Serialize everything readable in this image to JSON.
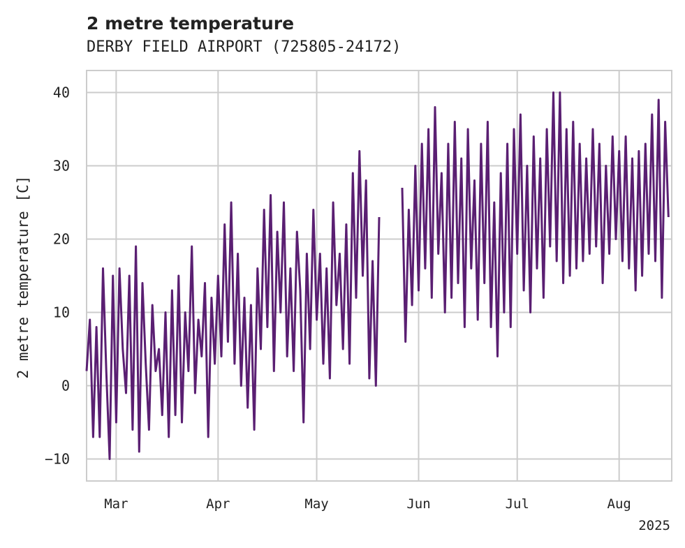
{
  "chart_data": {
    "type": "line",
    "title": "2 metre temperature",
    "subtitle": "DERBY FIELD AIRPORT (725805-24172)",
    "ylabel": "2 metre temperature [C]",
    "xlabel": "",
    "x_year_label": "2025",
    "ylim": [
      -13,
      43
    ],
    "yticks": [
      -10,
      0,
      10,
      20,
      30,
      40
    ],
    "xlim": [
      "2025-02-20",
      "2025-08-17"
    ],
    "xticks": [
      {
        "date": "2025-03-01",
        "label": "Mar"
      },
      {
        "date": "2025-04-01",
        "label": "Apr"
      },
      {
        "date": "2025-05-01",
        "label": "May"
      },
      {
        "date": "2025-06-01",
        "label": "Jun"
      },
      {
        "date": "2025-07-01",
        "label": "Jul"
      },
      {
        "date": "2025-08-01",
        "label": "Aug"
      }
    ],
    "grid": true,
    "line_color": "#5a1f72",
    "series": [
      {
        "name": "",
        "points": [
          [
            "2025-02-20",
            2
          ],
          [
            "2025-02-21",
            9
          ],
          [
            "2025-02-22",
            -7
          ],
          [
            "2025-02-23",
            8
          ],
          [
            "2025-02-24",
            -7
          ],
          [
            "2025-02-25",
            16
          ],
          [
            "2025-02-26",
            2
          ],
          [
            "2025-02-27",
            -10
          ],
          [
            "2025-02-28",
            15
          ],
          [
            "2025-03-01",
            -5
          ],
          [
            "2025-03-02",
            16
          ],
          [
            "2025-03-03",
            5
          ],
          [
            "2025-03-04",
            -1
          ],
          [
            "2025-03-05",
            15
          ],
          [
            "2025-03-06",
            -6
          ],
          [
            "2025-03-07",
            19
          ],
          [
            "2025-03-08",
            -9
          ],
          [
            "2025-03-09",
            14
          ],
          [
            "2025-03-10",
            3
          ],
          [
            "2025-03-11",
            -6
          ],
          [
            "2025-03-12",
            11
          ],
          [
            "2025-03-13",
            2
          ],
          [
            "2025-03-14",
            5
          ],
          [
            "2025-03-15",
            -4
          ],
          [
            "2025-03-16",
            10
          ],
          [
            "2025-03-17",
            -7
          ],
          [
            "2025-03-18",
            13
          ],
          [
            "2025-03-19",
            -4
          ],
          [
            "2025-03-20",
            15
          ],
          [
            "2025-03-21",
            -5
          ],
          [
            "2025-03-22",
            10
          ],
          [
            "2025-03-23",
            2
          ],
          [
            "2025-03-24",
            19
          ],
          [
            "2025-03-25",
            -1
          ],
          [
            "2025-03-26",
            9
          ],
          [
            "2025-03-27",
            4
          ],
          [
            "2025-03-28",
            14
          ],
          [
            "2025-03-29",
            -7
          ],
          [
            "2025-03-30",
            12
          ],
          [
            "2025-03-31",
            3
          ],
          [
            "2025-04-01",
            15
          ],
          [
            "2025-04-02",
            4
          ],
          [
            "2025-04-03",
            22
          ],
          [
            "2025-04-04",
            6
          ],
          [
            "2025-04-05",
            25
          ],
          [
            "2025-04-06",
            3
          ],
          [
            "2025-04-07",
            18
          ],
          [
            "2025-04-08",
            0
          ],
          [
            "2025-04-09",
            12
          ],
          [
            "2025-04-10",
            -3
          ],
          [
            "2025-04-11",
            11
          ],
          [
            "2025-04-12",
            -6
          ],
          [
            "2025-04-13",
            16
          ],
          [
            "2025-04-14",
            5
          ],
          [
            "2025-04-15",
            24
          ],
          [
            "2025-04-16",
            8
          ],
          [
            "2025-04-17",
            26
          ],
          [
            "2025-04-18",
            2
          ],
          [
            "2025-04-19",
            21
          ],
          [
            "2025-04-20",
            10
          ],
          [
            "2025-04-21",
            25
          ],
          [
            "2025-04-22",
            4
          ],
          [
            "2025-04-23",
            16
          ],
          [
            "2025-04-24",
            2
          ],
          [
            "2025-04-25",
            21
          ],
          [
            "2025-04-26",
            13
          ],
          [
            "2025-04-27",
            -5
          ],
          [
            "2025-04-28",
            18
          ],
          [
            "2025-04-29",
            5
          ],
          [
            "2025-04-30",
            24
          ],
          [
            "2025-05-01",
            9
          ],
          [
            "2025-05-02",
            18
          ],
          [
            "2025-05-03",
            3
          ],
          [
            "2025-05-04",
            16
          ],
          [
            "2025-05-05",
            1
          ],
          [
            "2025-05-06",
            25
          ],
          [
            "2025-05-07",
            11
          ],
          [
            "2025-05-08",
            18
          ],
          [
            "2025-05-09",
            5
          ],
          [
            "2025-05-10",
            22
          ],
          [
            "2025-05-11",
            3
          ],
          [
            "2025-05-12",
            29
          ],
          [
            "2025-05-13",
            12
          ],
          [
            "2025-05-14",
            32
          ],
          [
            "2025-05-15",
            15
          ],
          [
            "2025-05-16",
            28
          ],
          [
            "2025-05-17",
            1
          ],
          [
            "2025-05-18",
            17
          ],
          [
            "2025-05-19",
            0
          ],
          [
            "2025-05-20",
            23
          ],
          [
            "2025-05-27",
            27
          ],
          [
            "2025-05-28",
            6
          ],
          [
            "2025-05-29",
            24
          ],
          [
            "2025-05-30",
            11
          ],
          [
            "2025-05-31",
            30
          ],
          [
            "2025-06-01",
            13
          ],
          [
            "2025-06-02",
            33
          ],
          [
            "2025-06-03",
            16
          ],
          [
            "2025-06-04",
            35
          ],
          [
            "2025-06-05",
            12
          ],
          [
            "2025-06-06",
            38
          ],
          [
            "2025-06-07",
            18
          ],
          [
            "2025-06-08",
            29
          ],
          [
            "2025-06-09",
            10
          ],
          [
            "2025-06-10",
            33
          ],
          [
            "2025-06-11",
            12
          ],
          [
            "2025-06-12",
            36
          ],
          [
            "2025-06-13",
            14
          ],
          [
            "2025-06-14",
            31
          ],
          [
            "2025-06-15",
            8
          ],
          [
            "2025-06-16",
            35
          ],
          [
            "2025-06-17",
            16
          ],
          [
            "2025-06-18",
            28
          ],
          [
            "2025-06-19",
            9
          ],
          [
            "2025-06-20",
            33
          ],
          [
            "2025-06-21",
            14
          ],
          [
            "2025-06-22",
            36
          ],
          [
            "2025-06-23",
            8
          ],
          [
            "2025-06-24",
            25
          ],
          [
            "2025-06-25",
            4
          ],
          [
            "2025-06-26",
            29
          ],
          [
            "2025-06-27",
            10
          ],
          [
            "2025-06-28",
            33
          ],
          [
            "2025-06-29",
            8
          ],
          [
            "2025-06-30",
            35
          ],
          [
            "2025-07-01",
            18
          ],
          [
            "2025-07-02",
            37
          ],
          [
            "2025-07-03",
            13
          ],
          [
            "2025-07-04",
            30
          ],
          [
            "2025-07-05",
            10
          ],
          [
            "2025-07-06",
            34
          ],
          [
            "2025-07-07",
            16
          ],
          [
            "2025-07-08",
            31
          ],
          [
            "2025-07-09",
            12
          ],
          [
            "2025-07-10",
            35
          ],
          [
            "2025-07-11",
            19
          ],
          [
            "2025-07-12",
            40
          ],
          [
            "2025-07-13",
            17
          ],
          [
            "2025-07-14",
            40
          ],
          [
            "2025-07-15",
            14
          ],
          [
            "2025-07-16",
            35
          ],
          [
            "2025-07-17",
            15
          ],
          [
            "2025-07-18",
            36
          ],
          [
            "2025-07-19",
            16
          ],
          [
            "2025-07-20",
            33
          ],
          [
            "2025-07-21",
            17
          ],
          [
            "2025-07-22",
            31
          ],
          [
            "2025-07-23",
            18
          ],
          [
            "2025-07-24",
            35
          ],
          [
            "2025-07-25",
            19
          ],
          [
            "2025-07-26",
            33
          ],
          [
            "2025-07-27",
            14
          ],
          [
            "2025-07-28",
            30
          ],
          [
            "2025-07-29",
            18
          ],
          [
            "2025-07-30",
            34
          ],
          [
            "2025-07-31",
            20
          ],
          [
            "2025-08-01",
            32
          ],
          [
            "2025-08-02",
            17
          ],
          [
            "2025-08-03",
            34
          ],
          [
            "2025-08-04",
            16
          ],
          [
            "2025-08-05",
            31
          ],
          [
            "2025-08-06",
            13
          ],
          [
            "2025-08-07",
            32
          ],
          [
            "2025-08-08",
            15
          ],
          [
            "2025-08-09",
            33
          ],
          [
            "2025-08-10",
            18
          ],
          [
            "2025-08-11",
            37
          ],
          [
            "2025-08-12",
            17
          ],
          [
            "2025-08-13",
            39
          ],
          [
            "2025-08-14",
            12
          ],
          [
            "2025-08-15",
            36
          ],
          [
            "2025-08-16",
            23
          ]
        ]
      }
    ]
  }
}
